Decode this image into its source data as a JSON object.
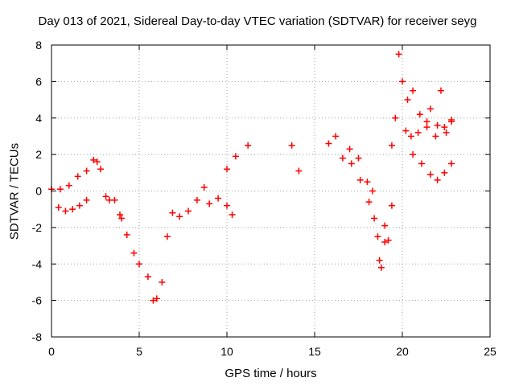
{
  "chart_data": {
    "type": "scatter",
    "title": "Day 013 of 2021, Sidereal Day-to-day VTEC variation (SDTVAR) for receiver seyg",
    "xlabel": "GPS time / hours",
    "ylabel": "SDTVAR / TECUs",
    "xlim": [
      0,
      25
    ],
    "ylim": [
      -8,
      8
    ],
    "x_ticks": [
      "0",
      "5",
      "10",
      "15",
      "20",
      "25"
    ],
    "y_ticks": [
      "-8",
      "-6",
      "-4",
      "-2",
      "0",
      "2",
      "4",
      "6",
      "8"
    ],
    "grid": true,
    "legend": "none",
    "marker": "+",
    "color": "#ff0000",
    "series": [
      {
        "x": [
          0.0,
          0.5,
          1.0,
          1.5,
          2.0,
          0.4,
          0.8,
          1.2,
          1.6,
          2.0,
          2.4,
          2.6,
          2.8,
          3.1,
          3.3,
          3.6,
          3.9,
          4.0,
          4.3,
          4.7,
          5.0,
          5.5,
          5.8,
          6.0,
          6.3,
          6.6,
          6.9,
          7.3,
          7.8,
          8.3,
          8.7,
          9.0,
          9.5,
          10.0,
          10.3,
          10.0,
          10.5,
          11.2,
          13.7,
          14.1,
          15.8,
          16.2,
          16.6,
          17.1,
          17.6,
          18.1,
          18.4,
          18.7,
          18.8,
          19.0,
          19.2,
          19.4,
          19.6,
          19.8,
          20.0,
          20.3,
          20.6,
          21.0,
          21.4,
          21.6,
          21.9,
          22.2,
          22.5,
          22.8,
          20.5,
          20.9,
          21.4,
          22.0,
          22.4,
          22.8,
          20.2,
          20.6,
          21.1,
          21.6,
          22.0,
          22.4,
          22.8,
          17.0,
          17.5,
          18.0,
          18.3,
          18.6,
          19.0,
          19.4
        ],
        "y": [
          0.1,
          0.1,
          0.3,
          0.8,
          1.1,
          -0.9,
          -1.1,
          -1.0,
          -0.8,
          -0.5,
          1.7,
          1.6,
          1.2,
          -0.3,
          -0.5,
          -0.5,
          -1.3,
          -1.5,
          -2.4,
          -3.4,
          -4.0,
          -4.7,
          -6.0,
          -5.9,
          -5.0,
          -2.5,
          -1.2,
          -1.4,
          -1.1,
          -0.5,
          0.2,
          -0.7,
          -0.4,
          -0.8,
          -1.3,
          1.2,
          1.9,
          2.5,
          2.5,
          1.1,
          2.6,
          3.0,
          1.8,
          1.5,
          0.6,
          -0.6,
          -1.5,
          -3.8,
          -4.2,
          -1.9,
          -2.7,
          2.5,
          4.0,
          7.5,
          6.0,
          5.0,
          5.5,
          4.2,
          3.5,
          4.5,
          3.0,
          5.5,
          3.2,
          3.8,
          3.0,
          3.2,
          3.8,
          3.6,
          3.5,
          3.9,
          3.3,
          2.0,
          1.5,
          0.9,
          0.6,
          1.0,
          1.5,
          2.3,
          1.8,
          0.5,
          0.0,
          -2.5,
          -2.8,
          -0.8
        ]
      }
    ]
  }
}
